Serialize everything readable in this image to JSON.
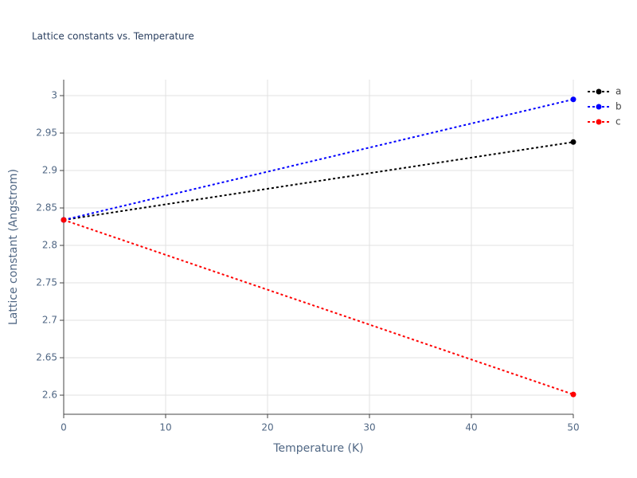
{
  "chart_data": {
    "type": "line",
    "title": "Lattice constants vs. Temperature",
    "xlabel": "Temperature (K)",
    "ylabel": "Lattice constant (Angstrom)",
    "x": [
      0,
      50
    ],
    "series": [
      {
        "name": "a",
        "color": "#000000",
        "values": [
          2.834,
          2.938
        ]
      },
      {
        "name": "b",
        "color": "#0000ff",
        "values": [
          2.834,
          2.995
        ]
      },
      {
        "name": "c",
        "color": "#ff0000",
        "values": [
          2.834,
          2.601
        ]
      }
    ],
    "xlim": [
      0,
      50
    ],
    "xticks": [
      0,
      10,
      20,
      30,
      40,
      50
    ],
    "ylim": [
      2.5745,
      3.0213
    ],
    "yticks": [
      2.6,
      2.65,
      2.7,
      2.75,
      2.8,
      2.85,
      2.9,
      2.95,
      3
    ],
    "grid": true,
    "legend": "top-right",
    "line_style": "dotted"
  }
}
